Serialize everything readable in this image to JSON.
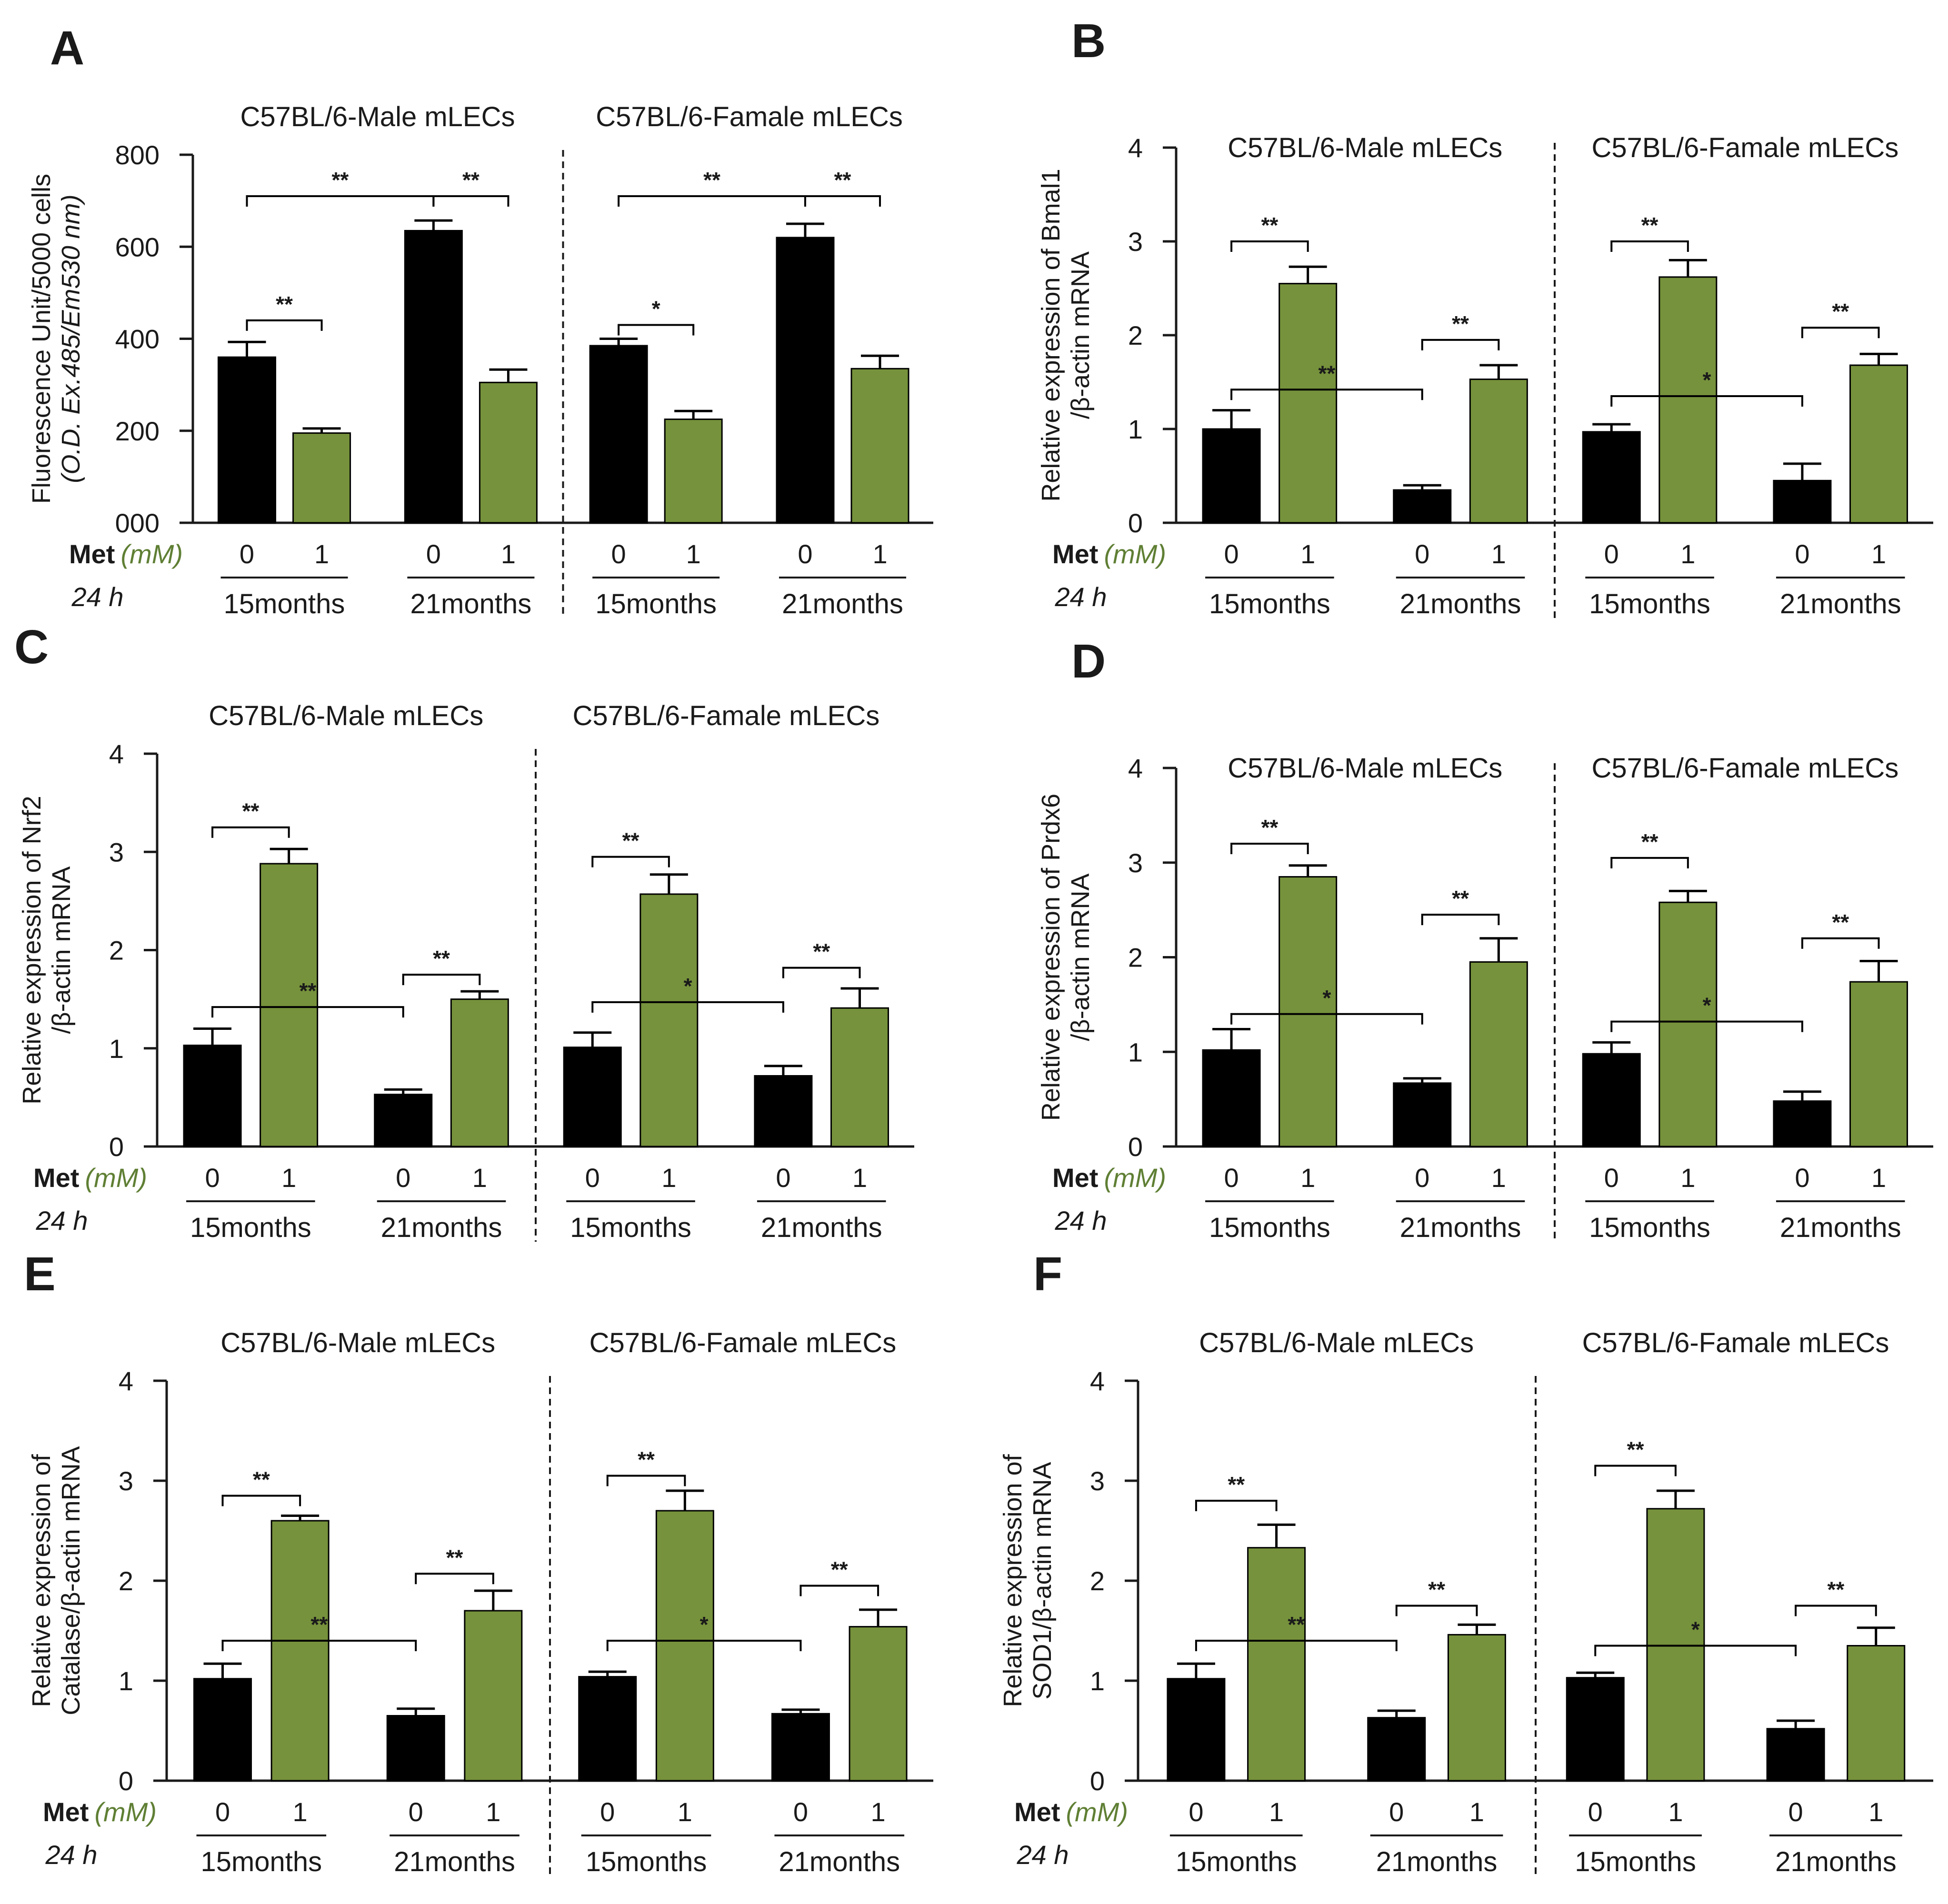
{
  "figure": {
    "met_label": "Met",
    "met_unit": "(mM)",
    "time_label": "24 h",
    "dose_labels": [
      "0",
      "1"
    ],
    "age_groups": [
      "15months",
      "21months"
    ],
    "sex_groups": [
      "C57BL/6-Male  mLECs",
      "C57BL/6-Famale mLECs"
    ]
  },
  "colors": {
    "control": "#000000",
    "metformin": "#76923c",
    "axis": "#1a1a1a"
  },
  "chart_data": [
    {
      "panel": "A",
      "type": "bar",
      "ylabel": [
        "Fluorescence Unit/5000 cells",
        "(O.D. Ex.485/Em530 nm)"
      ],
      "ylabel_italic_line": 1,
      "ylim": [
        0,
        800
      ],
      "yticks": [
        "000",
        "200",
        "400",
        "600",
        "800"
      ],
      "groups": [
        {
          "title": "C57BL/6-Male  mLECs",
          "values": [
            360,
            195,
            635,
            305
          ],
          "errors": [
            33,
            10,
            22,
            28
          ]
        },
        {
          "title": "C57BL/6-Famale mLECs",
          "values": [
            385,
            225,
            620,
            335
          ],
          "errors": [
            15,
            18,
            30,
            28
          ]
        }
      ],
      "sig": [
        {
          "g": 0,
          "a": 0,
          "b": 1,
          "y": 440,
          "label": "**"
        },
        {
          "g": 0,
          "a": 0,
          "b": 2,
          "y": 710,
          "label": "**"
        },
        {
          "g": 0,
          "a": 2,
          "b": 3,
          "y": 710,
          "label": "**"
        },
        {
          "g": 1,
          "a": 0,
          "b": 1,
          "y": 430,
          "label": "*"
        },
        {
          "g": 1,
          "a": 0,
          "b": 2,
          "y": 710,
          "label": "**"
        },
        {
          "g": 1,
          "a": 2,
          "b": 3,
          "y": 710,
          "label": "**"
        }
      ]
    },
    {
      "panel": "B",
      "type": "bar",
      "ylabel": [
        "Relative expression of Bmal1",
        "/β-actin mRNA"
      ],
      "ylim": [
        0,
        4
      ],
      "yticks": [
        "0",
        "1",
        "2",
        "3",
        "4"
      ],
      "groups": [
        {
          "title": "C57BL/6-Male  mLECs",
          "values": [
            1.0,
            2.55,
            0.35,
            1.53
          ],
          "errors": [
            0.2,
            0.18,
            0.05,
            0.15
          ]
        },
        {
          "title": "C57BL/6-Famale mLECs",
          "values": [
            0.97,
            2.62,
            0.45,
            1.68
          ],
          "errors": [
            0.08,
            0.18,
            0.18,
            0.12
          ]
        }
      ],
      "sig": [
        {
          "g": 0,
          "a": 0,
          "b": 1,
          "y": 3.0,
          "label": "**"
        },
        {
          "g": 0,
          "a": 0,
          "b": 2,
          "y": 1.42,
          "label": "**"
        },
        {
          "g": 0,
          "a": 2,
          "b": 3,
          "y": 1.95,
          "label": "**"
        },
        {
          "g": 1,
          "a": 0,
          "b": 1,
          "y": 3.0,
          "label": "**"
        },
        {
          "g": 1,
          "a": 0,
          "b": 2,
          "y": 1.35,
          "label": "*"
        },
        {
          "g": 1,
          "a": 2,
          "b": 3,
          "y": 2.08,
          "label": "**"
        }
      ]
    },
    {
      "panel": "C",
      "type": "bar",
      "ylabel": [
        "Relative expression of Nrf2",
        "/β-actin mRNA"
      ],
      "ylim": [
        0,
        4
      ],
      "yticks": [
        "0",
        "1",
        "2",
        "3",
        "4"
      ],
      "groups": [
        {
          "title": "C57BL/6-Male  mLECs",
          "values": [
            1.03,
            2.88,
            0.53,
            1.5
          ],
          "errors": [
            0.17,
            0.15,
            0.05,
            0.08
          ]
        },
        {
          "title": "C57BL/6-Famale mLECs",
          "values": [
            1.01,
            2.57,
            0.72,
            1.41
          ],
          "errors": [
            0.15,
            0.2,
            0.1,
            0.2
          ]
        }
      ],
      "sig": [
        {
          "g": 0,
          "a": 0,
          "b": 1,
          "y": 3.25,
          "label": "**"
        },
        {
          "g": 0,
          "a": 0,
          "b": 2,
          "y": 1.42,
          "label": "**"
        },
        {
          "g": 0,
          "a": 2,
          "b": 3,
          "y": 1.75,
          "label": "**"
        },
        {
          "g": 1,
          "a": 0,
          "b": 1,
          "y": 2.95,
          "label": "**"
        },
        {
          "g": 1,
          "a": 0,
          "b": 2,
          "y": 1.47,
          "label": "*"
        },
        {
          "g": 1,
          "a": 2,
          "b": 3,
          "y": 1.82,
          "label": "**"
        }
      ]
    },
    {
      "panel": "D",
      "type": "bar",
      "ylabel": [
        "Relative expression of Prdx6",
        "/β-actin mRNA"
      ],
      "ylim": [
        0,
        4
      ],
      "yticks": [
        "0",
        "1",
        "2",
        "3",
        "4"
      ],
      "groups": [
        {
          "title": "C57BL/6-Male  mLECs",
          "values": [
            1.02,
            2.85,
            0.67,
            1.95
          ],
          "errors": [
            0.22,
            0.12,
            0.05,
            0.25
          ]
        },
        {
          "title": "C57BL/6-Famale mLECs",
          "values": [
            0.98,
            2.58,
            0.48,
            1.74
          ],
          "errors": [
            0.12,
            0.12,
            0.1,
            0.22
          ]
        }
      ],
      "sig": [
        {
          "g": 0,
          "a": 0,
          "b": 1,
          "y": 3.2,
          "label": "**"
        },
        {
          "g": 0,
          "a": 0,
          "b": 2,
          "y": 1.4,
          "label": "*"
        },
        {
          "g": 0,
          "a": 2,
          "b": 3,
          "y": 2.45,
          "label": "**"
        },
        {
          "g": 1,
          "a": 0,
          "b": 1,
          "y": 3.05,
          "label": "**"
        },
        {
          "g": 1,
          "a": 0,
          "b": 2,
          "y": 1.32,
          "label": "*"
        },
        {
          "g": 1,
          "a": 2,
          "b": 3,
          "y": 2.2,
          "label": "**"
        }
      ]
    },
    {
      "panel": "E",
      "type": "bar",
      "ylabel": [
        "Relative expression of",
        "Catalase/β-actin mRNA"
      ],
      "ylim": [
        0,
        4
      ],
      "yticks": [
        "0",
        "1",
        "2",
        "3",
        "4"
      ],
      "groups": [
        {
          "title": "C57BL/6-Male  mLECs",
          "values": [
            1.02,
            2.6,
            0.65,
            1.7
          ],
          "errors": [
            0.15,
            0.05,
            0.07,
            0.2
          ]
        },
        {
          "title": "C57BL/6-Famale mLECs",
          "values": [
            1.04,
            2.7,
            0.67,
            1.54
          ],
          "errors": [
            0.05,
            0.2,
            0.04,
            0.17
          ]
        }
      ],
      "sig": [
        {
          "g": 0,
          "a": 0,
          "b": 1,
          "y": 2.85,
          "label": "**"
        },
        {
          "g": 0,
          "a": 0,
          "b": 2,
          "y": 1.4,
          "label": "**"
        },
        {
          "g": 0,
          "a": 2,
          "b": 3,
          "y": 2.07,
          "label": "**"
        },
        {
          "g": 1,
          "a": 0,
          "b": 1,
          "y": 3.05,
          "label": "**"
        },
        {
          "g": 1,
          "a": 0,
          "b": 2,
          "y": 1.4,
          "label": "*"
        },
        {
          "g": 1,
          "a": 2,
          "b": 3,
          "y": 1.95,
          "label": "**"
        }
      ]
    },
    {
      "panel": "F",
      "type": "bar",
      "ylabel": [
        "Relative expression of",
        "SOD1/β-actin mRNA"
      ],
      "ylim": [
        0,
        4
      ],
      "yticks": [
        "0",
        "1",
        "2",
        "3",
        "4"
      ],
      "groups": [
        {
          "title": "C57BL/6-Male  mLECs",
          "values": [
            1.02,
            2.33,
            0.63,
            1.46
          ],
          "errors": [
            0.15,
            0.23,
            0.07,
            0.1
          ]
        },
        {
          "title": "C57BL/6-Famale mLECs",
          "values": [
            1.03,
            2.72,
            0.52,
            1.35
          ],
          "errors": [
            0.05,
            0.18,
            0.08,
            0.18
          ]
        }
      ],
      "sig": [
        {
          "g": 0,
          "a": 0,
          "b": 1,
          "y": 2.8,
          "label": "**"
        },
        {
          "g": 0,
          "a": 0,
          "b": 2,
          "y": 1.4,
          "label": "**"
        },
        {
          "g": 0,
          "a": 2,
          "b": 3,
          "y": 1.75,
          "label": "**"
        },
        {
          "g": 1,
          "a": 0,
          "b": 1,
          "y": 3.15,
          "label": "**"
        },
        {
          "g": 1,
          "a": 0,
          "b": 2,
          "y": 1.35,
          "label": "*"
        },
        {
          "g": 1,
          "a": 2,
          "b": 3,
          "y": 1.75,
          "label": "**"
        }
      ]
    }
  ]
}
